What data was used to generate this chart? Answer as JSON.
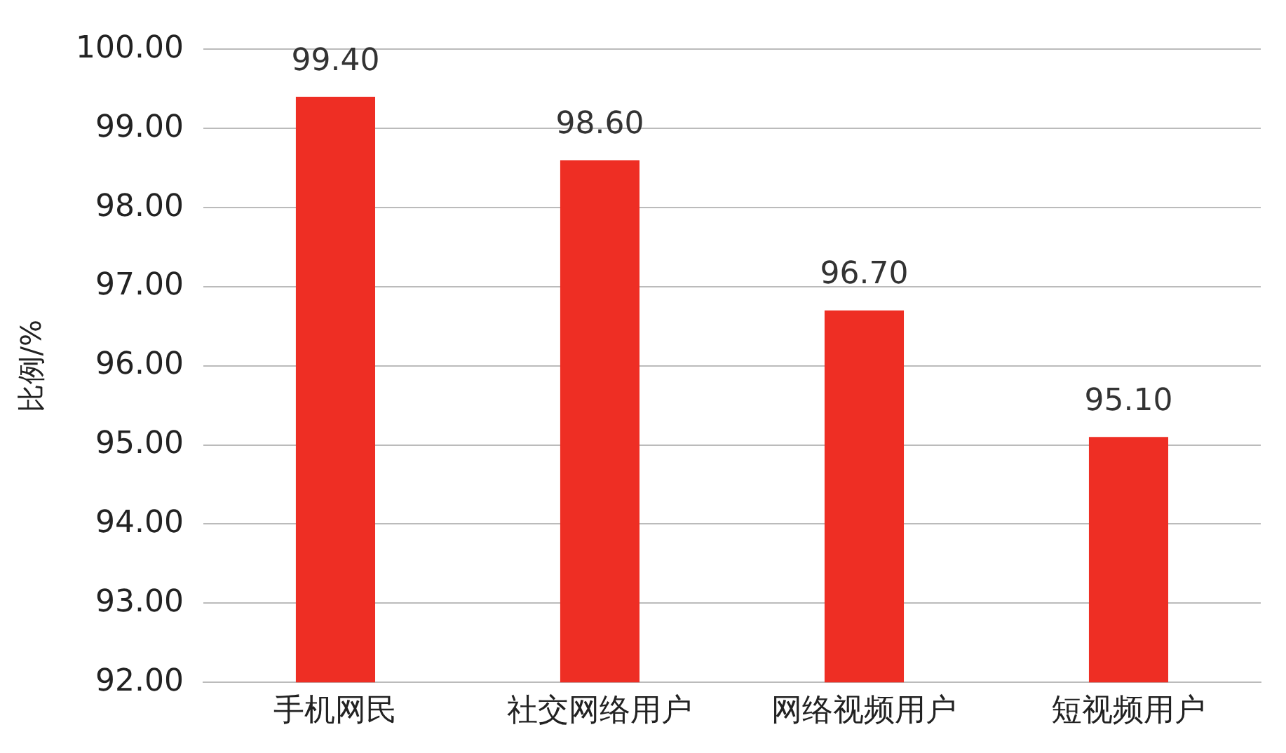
{
  "chart_data": {
    "type": "bar",
    "ylabel": "比例/%",
    "categories": [
      "手机网民",
      "社交网络用户",
      "网络视频用户",
      "短视频用户"
    ],
    "values": [
      99.4,
      98.6,
      96.7,
      95.1
    ],
    "color": "#ee2e24",
    "value_labels": [
      "99.40",
      "98.60",
      "96.70",
      "95.10"
    ],
    "ylim": [
      92,
      100
    ],
    "yticks": [
      {
        "value": 92,
        "label": "92.00"
      },
      {
        "value": 93,
        "label": "93.00"
      },
      {
        "value": 94,
        "label": "94.00"
      },
      {
        "value": 95,
        "label": "95.00"
      },
      {
        "value": 96,
        "label": "96.00"
      },
      {
        "value": 97,
        "label": "97.00"
      },
      {
        "value": 98,
        "label": "98.00"
      },
      {
        "value": 99,
        "label": "99.00"
      },
      {
        "value": 100,
        "label": "100.00"
      }
    ],
    "grid": "y",
    "legend": false
  }
}
